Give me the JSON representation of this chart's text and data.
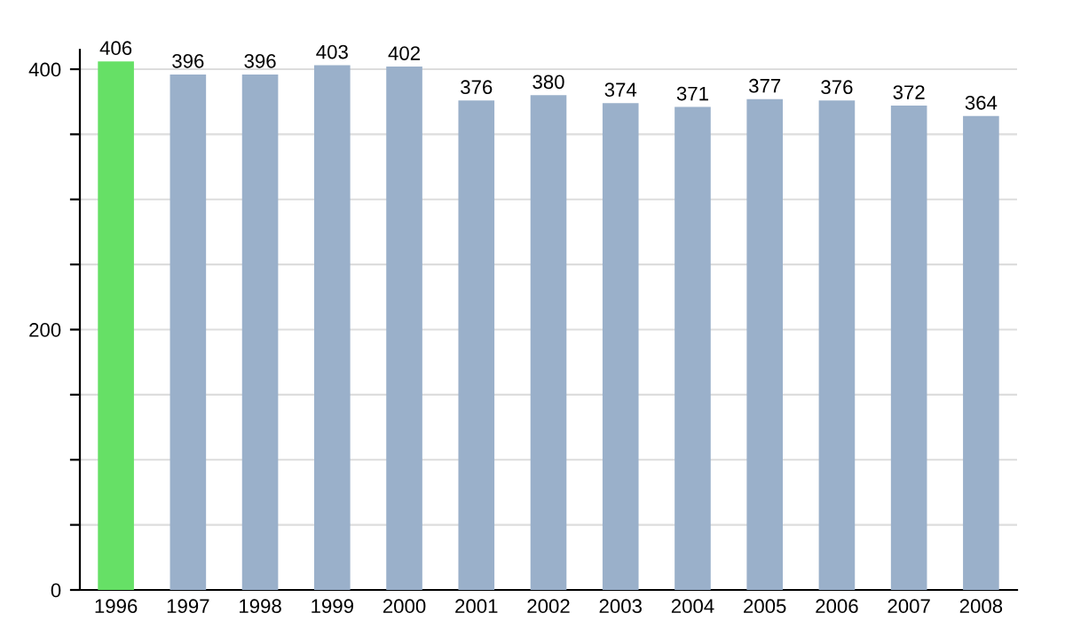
{
  "chart_data": {
    "type": "bar",
    "categories": [
      "1996",
      "1997",
      "1998",
      "1999",
      "2000",
      "2001",
      "2002",
      "2003",
      "2004",
      "2005",
      "2006",
      "2007",
      "2008"
    ],
    "values": [
      406,
      396,
      396,
      403,
      402,
      376,
      380,
      374,
      371,
      377,
      376,
      372,
      364
    ],
    "colors": [
      "#66e066",
      "#9ab0ca",
      "#9ab0ca",
      "#9ab0ca",
      "#9ab0ca",
      "#9ab0ca",
      "#9ab0ca",
      "#9ab0ca",
      "#9ab0ca",
      "#9ab0ca",
      "#9ab0ca",
      "#9ab0ca",
      "#9ab0ca"
    ],
    "ylim": [
      0,
      415
    ],
    "yticks": [
      0,
      {
        "value": 50,
        "label": null
      },
      {
        "value": 100,
        "label": null
      },
      {
        "value": 150,
        "label": null
      },
      200,
      {
        "value": 250,
        "label": null
      },
      {
        "value": 300,
        "label": null
      },
      {
        "value": 350,
        "label": null
      },
      400
    ],
    "grid": "y",
    "data_labels": true
  }
}
